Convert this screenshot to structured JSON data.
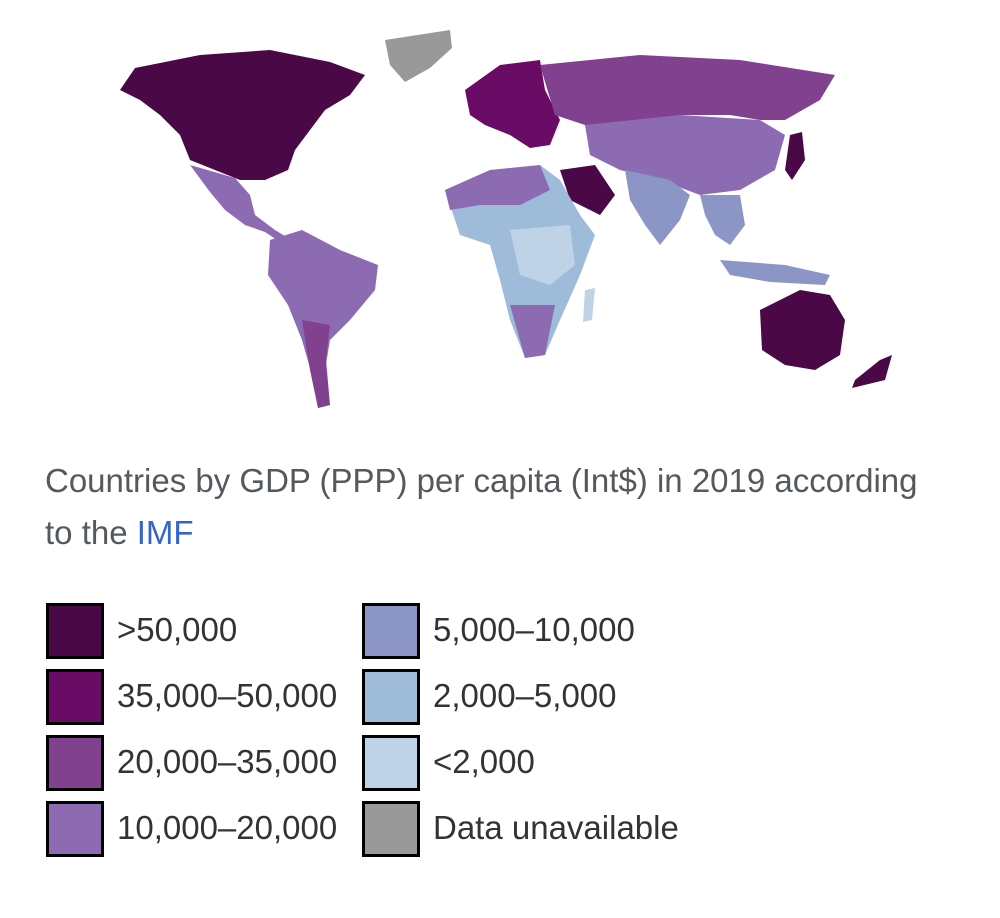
{
  "caption": {
    "text": "Countries by GDP (PPP) per capita (Int$) in 2019 according to the ",
    "link_text": "IMF",
    "link_color": "#3366cc"
  },
  "legend": {
    "left": [
      {
        "label": ">50,000",
        "color": "#4a0847"
      },
      {
        "label": "35,000–50,000",
        "color": "#6a0b66"
      },
      {
        "label": "20,000–35,000",
        "color": "#81418f"
      },
      {
        "label": "10,000–20,000",
        "color": "#8c6bb3"
      }
    ],
    "right": [
      {
        "label": "5,000–10,000",
        "color": "#8c96c6"
      },
      {
        "label": "2,000–5,000",
        "color": "#9ebcda"
      },
      {
        "label": "<2,000",
        "color": "#bfd3e6"
      },
      {
        "label": "Data unavailable",
        "color": "#999999"
      }
    ]
  }
}
